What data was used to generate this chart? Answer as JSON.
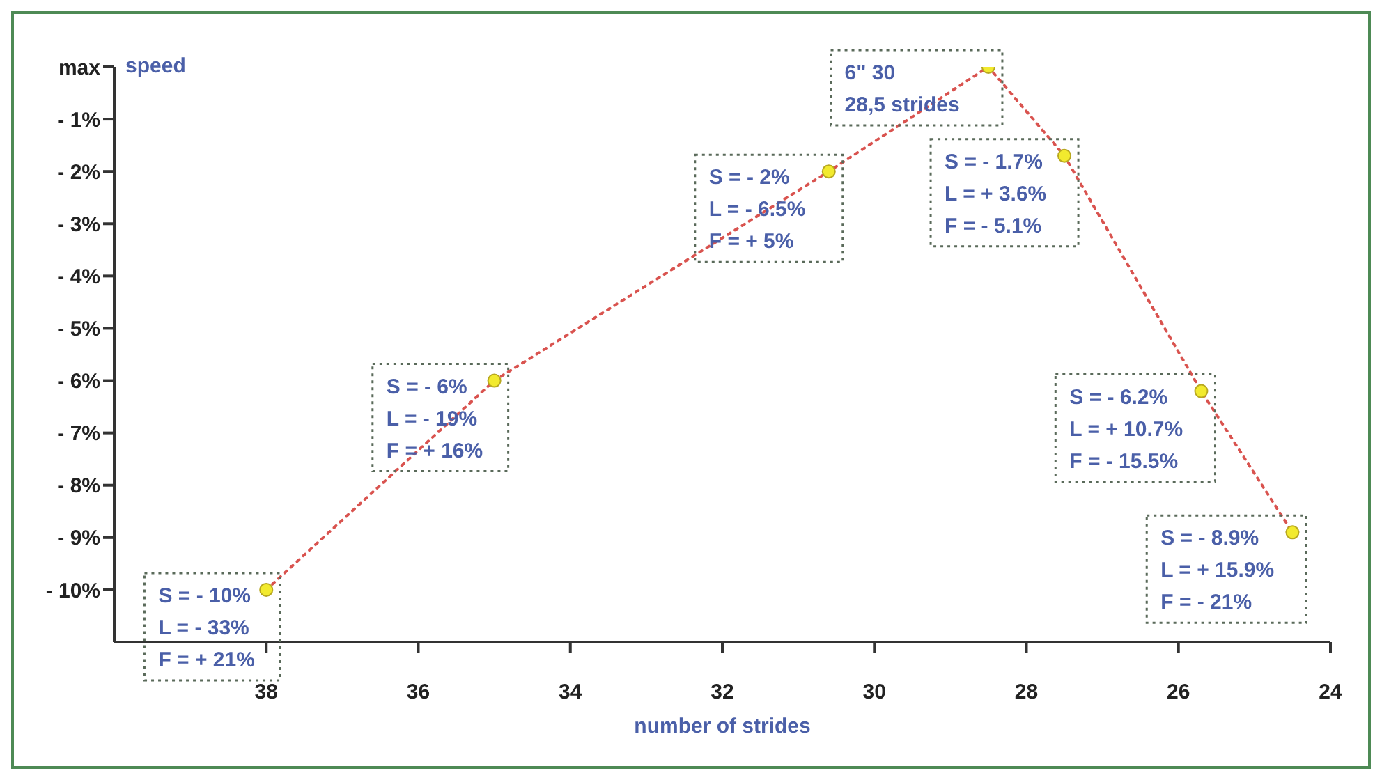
{
  "chart_data": {
    "type": "line",
    "xlabel": "number of strides",
    "ylabel": "speed",
    "xlim": [
      40,
      24
    ],
    "xticks": [
      38,
      36,
      34,
      32,
      30,
      28,
      26,
      24
    ],
    "ylim": [
      -11,
      0
    ],
    "yticks": [
      {
        "value": 0,
        "label": "max"
      },
      {
        "value": -1,
        "label": "- 1%"
      },
      {
        "value": -2,
        "label": "- 2%"
      },
      {
        "value": -3,
        "label": "- 3%"
      },
      {
        "value": -4,
        "label": "- 4%"
      },
      {
        "value": -5,
        "label": "- 5%"
      },
      {
        "value": -6,
        "label": "- 6%"
      },
      {
        "value": -7,
        "label": "- 7%"
      },
      {
        "value": -8,
        "label": "- 8%"
      },
      {
        "value": -9,
        "label": "- 9%"
      },
      {
        "value": -10,
        "label": "- 10%"
      }
    ],
    "grid": false,
    "legend": false,
    "series": [
      {
        "color": "#d9534f",
        "line_style": "dotted",
        "marker": "none",
        "x": [
          38,
          35,
          30.6,
          28.5,
          27.5,
          25.7,
          24.5
        ],
        "values": [
          -10,
          -6,
          -2,
          0,
          -1.7,
          -6.2,
          -8.9
        ]
      },
      {
        "type": "scatter",
        "color": "#f2ea2e",
        "marker": "circle",
        "x": [
          38,
          35,
          30.6,
          28.5,
          27.5,
          25.7,
          24.5
        ],
        "values": [
          -10,
          -6,
          -2,
          0,
          -1.7,
          -6.2,
          -8.9
        ]
      }
    ],
    "annotations": [
      {
        "text": "S = - 10%\nL = - 33%\nF = + 21%",
        "x": 38,
        "y": -10
      },
      {
        "text": "S = - 6%\nL = - 19%\nF = + 16%",
        "x": 35,
        "y": -6
      },
      {
        "text": "S = - 2%\nL = - 6.5%\nF = + 5%",
        "x": 30.6,
        "y": -2
      },
      {
        "text": "6\" 30\n28,5 strides",
        "x": 28.5,
        "y": 0
      },
      {
        "text": "S = - 1.7%\nL = + 3.6%\nF = - 5.1%",
        "x": 27.5,
        "y": -1.7
      },
      {
        "text": "S = - 6.2%\nL = + 10.7%\nF = - 15.5%",
        "x": 25.7,
        "y": -6.2
      },
      {
        "text": "S = - 8.9%\nL = + 15.9%\nF = - 21%",
        "x": 24.5,
        "y": -8.9
      }
    ]
  }
}
